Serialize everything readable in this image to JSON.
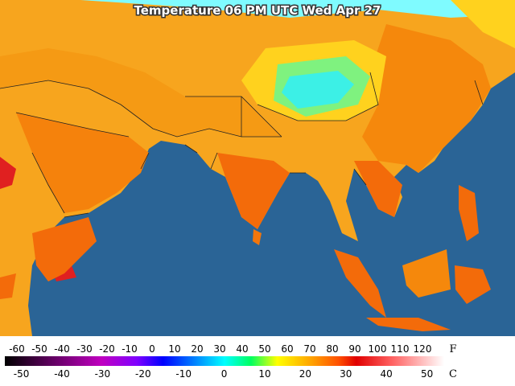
{
  "title": "Temperature 06 PM UTC Wed Apr 27",
  "legend": {
    "fahrenheit": {
      "unit": "F",
      "ticks": [
        -60,
        -50,
        -40,
        -30,
        -20,
        -10,
        0,
        10,
        20,
        30,
        40,
        50,
        60,
        70,
        80,
        90,
        100,
        110,
        120
      ]
    },
    "celsius": {
      "unit": "C",
      "ticks": [
        -50,
        -40,
        -30,
        -20,
        -10,
        0,
        10,
        20,
        30,
        40,
        50
      ]
    }
  }
}
